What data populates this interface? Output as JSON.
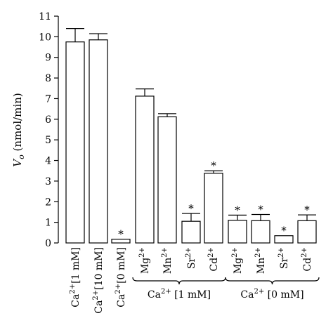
{
  "chart_data": {
    "type": "bar",
    "ylabel": "V",
    "ylabel_sub": "o",
    "ylabel_unit": " (nmol/min)",
    "ylim": [
      0,
      11
    ],
    "yticks": [
      0,
      1,
      2,
      3,
      4,
      5,
      6,
      7,
      8,
      9,
      10,
      11
    ],
    "significance_marker": "*",
    "bars": [
      {
        "base": "Ca",
        "sup": "2+",
        "tail": "[1 mM]",
        "value": 9.75,
        "error": 0.65,
        "significant": false
      },
      {
        "base": "Ca",
        "sup": "2+",
        "tail": "[10 mM]",
        "value": 9.85,
        "error": 0.3,
        "significant": false
      },
      {
        "base": "Ca",
        "sup": "2+",
        "tail": "[0 mM]",
        "value": 0.18,
        "error": 0,
        "significant": true
      },
      {
        "base": "Mg",
        "sup": "2+",
        "tail": "",
        "value": 7.12,
        "error": 0.35,
        "significant": false
      },
      {
        "base": "Mn",
        "sup": "2+",
        "tail": "",
        "value": 6.12,
        "error": 0.15,
        "significant": false
      },
      {
        "base": "Sr",
        "sup": "2+",
        "tail": "",
        "value": 1.05,
        "error": 0.38,
        "significant": true
      },
      {
        "base": "Cd",
        "sup": "2+",
        "tail": "",
        "value": 3.38,
        "error": 0.12,
        "significant": true
      },
      {
        "base": "Mg",
        "sup": "2+",
        "tail": "",
        "value": 1.1,
        "error": 0.25,
        "significant": true
      },
      {
        "base": "Mn",
        "sup": "2+",
        "tail": "",
        "value": 1.08,
        "error": 0.3,
        "significant": true
      },
      {
        "base": "Sr",
        "sup": "2+",
        "tail": "",
        "value": 0.35,
        "error": 0,
        "significant": true
      },
      {
        "base": "Cd",
        "sup": "2+",
        "tail": "",
        "value": 1.08,
        "error": 0.28,
        "significant": true
      }
    ],
    "groups": [
      {
        "base": "Ca",
        "sup": "2+",
        "tail": "[1 mM]",
        "from": 3,
        "to": 6
      },
      {
        "base": "Ca",
        "sup": "2+",
        "tail": "[0 mM]",
        "from": 7,
        "to": 10
      }
    ]
  }
}
